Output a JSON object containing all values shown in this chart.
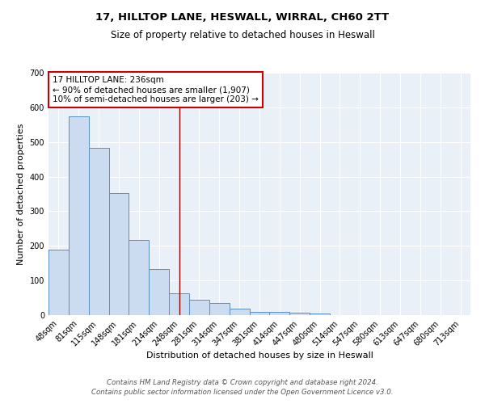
{
  "title": "17, HILLTOP LANE, HESWALL, WIRRAL, CH60 2TT",
  "subtitle": "Size of property relative to detached houses in Heswall",
  "xlabel": "Distribution of detached houses by size in Heswall",
  "ylabel": "Number of detached properties",
  "categories": [
    "48sqm",
    "81sqm",
    "115sqm",
    "148sqm",
    "181sqm",
    "214sqm",
    "248sqm",
    "281sqm",
    "314sqm",
    "347sqm",
    "381sqm",
    "414sqm",
    "447sqm",
    "480sqm",
    "514sqm",
    "547sqm",
    "580sqm",
    "613sqm",
    "647sqm",
    "680sqm",
    "713sqm"
  ],
  "values": [
    190,
    575,
    483,
    352,
    218,
    133,
    62,
    45,
    36,
    18,
    10,
    10,
    8,
    5,
    0,
    0,
    0,
    0,
    0,
    0,
    0
  ],
  "bar_color": "#ccdcf0",
  "bar_edge_color": "#5b8ec4",
  "marker_color": "#8b0000",
  "annotation_text": "17 HILLTOP LANE: 236sqm\n← 90% of detached houses are smaller (1,907)\n10% of semi-detached houses are larger (203) →",
  "annotation_box_color": "white",
  "annotation_box_edge": "#cc0000",
  "ylim": [
    0,
    700
  ],
  "yticks": [
    0,
    100,
    200,
    300,
    400,
    500,
    600,
    700
  ],
  "background_color": "#eaf0f8",
  "grid_color": "white",
  "footer_line1": "Contains HM Land Registry data © Crown copyright and database right 2024.",
  "footer_line2": "Contains public sector information licensed under the Open Government Licence v3.0.",
  "title_fontsize": 9.5,
  "subtitle_fontsize": 8.5,
  "axis_label_fontsize": 8,
  "tick_fontsize": 7,
  "annotation_fontsize": 7.5,
  "footer_fontsize": 6.2
}
